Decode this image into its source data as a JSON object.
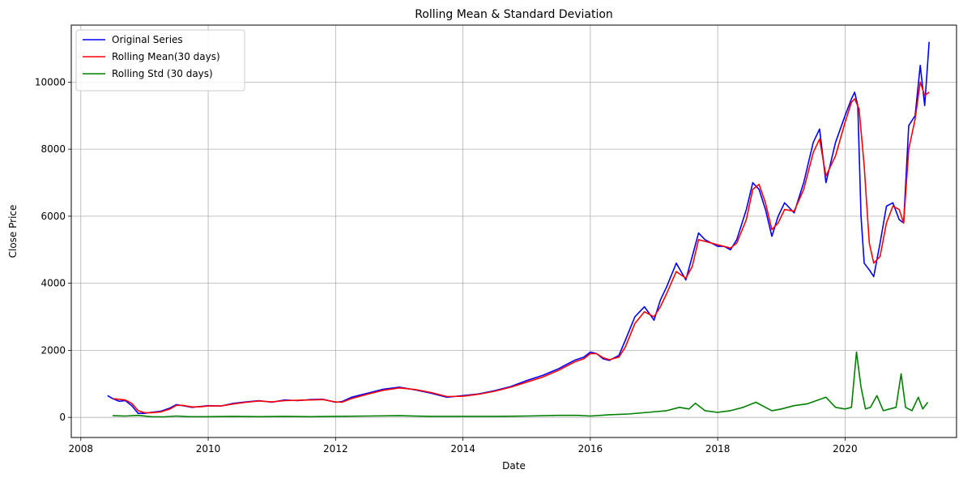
{
  "chart_data": {
    "type": "line",
    "title": "Rolling Mean & Standard Deviation",
    "xlabel": "Date",
    "ylabel": "Close Price",
    "xlim": [
      2007.85,
      2021.75
    ],
    "ylim": [
      -600,
      11700
    ],
    "x_ticks": [
      2008,
      2010,
      2012,
      2014,
      2016,
      2018,
      2020
    ],
    "x_tick_labels": [
      "2008",
      "2010",
      "2012",
      "2014",
      "2016",
      "2018",
      "2020"
    ],
    "y_ticks": [
      0,
      2000,
      4000,
      6000,
      8000,
      10000
    ],
    "y_tick_labels": [
      "0",
      "2000",
      "4000",
      "6000",
      "8000",
      "10000"
    ],
    "grid": true,
    "legend_position": "top-left",
    "colors": {
      "original": "#0000ff",
      "mean": "#ff0000",
      "std": "#008000",
      "grid": "#b0b0b0"
    },
    "series": [
      {
        "name": "Original Series",
        "color": "#0000ff",
        "x": [
          2008.42,
          2008.5,
          2008.6,
          2008.7,
          2008.8,
          2008.9,
          2009.0,
          2009.1,
          2009.25,
          2009.4,
          2009.5,
          2009.6,
          2009.75,
          2009.9,
          2010.0,
          2010.2,
          2010.4,
          2010.6,
          2010.8,
          2011.0,
          2011.2,
          2011.4,
          2011.6,
          2011.8,
          2012.0,
          2012.1,
          2012.25,
          2012.5,
          2012.75,
          2013.0,
          2013.25,
          2013.5,
          2013.75,
          2014.0,
          2014.25,
          2014.5,
          2014.75,
          2015.0,
          2015.25,
          2015.5,
          2015.6,
          2015.75,
          2015.9,
          2016.0,
          2016.1,
          2016.2,
          2016.3,
          2016.45,
          2016.55,
          2016.7,
          2016.85,
          2017.0,
          2017.1,
          2017.2,
          2017.35,
          2017.5,
          2017.6,
          2017.7,
          2017.8,
          2018.0,
          2018.1,
          2018.2,
          2018.3,
          2018.45,
          2018.55,
          2018.65,
          2018.75,
          2018.85,
          2018.95,
          2019.05,
          2019.2,
          2019.35,
          2019.5,
          2019.6,
          2019.7,
          2019.85,
          2020.0,
          2020.1,
          2020.15,
          2020.2,
          2020.25,
          2020.3,
          2020.38,
          2020.45,
          2020.55,
          2020.65,
          2020.75,
          2020.85,
          2020.92,
          2021.0,
          2021.1,
          2021.18,
          2021.25,
          2021.32
        ],
        "values": [
          650,
          560,
          480,
          500,
          350,
          120,
          120,
          150,
          180,
          280,
          380,
          350,
          300,
          330,
          350,
          340,
          420,
          460,
          500,
          450,
          520,
          500,
          530,
          540,
          450,
          470,
          600,
          720,
          840,
          900,
          820,
          720,
          600,
          650,
          700,
          800,
          920,
          1100,
          1250,
          1450,
          1550,
          1700,
          1800,
          1950,
          1900,
          1750,
          1700,
          1850,
          2300,
          3000,
          3300,
          2900,
          3500,
          3900,
          4600,
          4100,
          4800,
          5500,
          5300,
          5100,
          5100,
          5000,
          5300,
          6200,
          7000,
          6800,
          6200,
          5400,
          6000,
          6400,
          6100,
          7000,
          8200,
          8600,
          7000,
          8200,
          9000,
          9500,
          9700,
          9300,
          6000,
          4600,
          4400,
          4200,
          5200,
          6300,
          6400,
          5900,
          5800,
          8700,
          9000,
          10500,
          9300,
          11200
        ]
      },
      {
        "name": "Rolling Mean(30 days)",
        "color": "#ff0000",
        "x": [
          2008.5,
          2008.6,
          2008.7,
          2008.8,
          2008.9,
          2009.0,
          2009.1,
          2009.25,
          2009.4,
          2009.5,
          2009.6,
          2009.75,
          2009.9,
          2010.0,
          2010.2,
          2010.4,
          2010.6,
          2010.8,
          2011.0,
          2011.2,
          2011.4,
          2011.6,
          2011.8,
          2012.0,
          2012.1,
          2012.25,
          2012.5,
          2012.75,
          2013.0,
          2013.25,
          2013.5,
          2013.75,
          2014.0,
          2014.25,
          2014.5,
          2014.75,
          2015.0,
          2015.25,
          2015.5,
          2015.6,
          2015.75,
          2015.9,
          2016.0,
          2016.1,
          2016.2,
          2016.3,
          2016.45,
          2016.55,
          2016.7,
          2016.85,
          2017.0,
          2017.1,
          2017.2,
          2017.35,
          2017.5,
          2017.6,
          2017.7,
          2017.8,
          2018.0,
          2018.1,
          2018.2,
          2018.3,
          2018.45,
          2018.55,
          2018.65,
          2018.75,
          2018.85,
          2018.95,
          2019.05,
          2019.2,
          2019.35,
          2019.5,
          2019.6,
          2019.7,
          2019.85,
          2020.0,
          2020.1,
          2020.15,
          2020.22,
          2020.3,
          2020.38,
          2020.45,
          2020.55,
          2020.65,
          2020.75,
          2020.85,
          2020.92,
          2021.0,
          2021.1,
          2021.18,
          2021.25,
          2021.32
        ],
        "values": [
          560,
          540,
          520,
          420,
          200,
          140,
          140,
          160,
          250,
          360,
          360,
          310,
          320,
          340,
          340,
          400,
          450,
          490,
          460,
          500,
          510,
          520,
          530,
          460,
          450,
          560,
          690,
          810,
          880,
          830,
          740,
          620,
          630,
          690,
          780,
          900,
          1050,
          1200,
          1400,
          1500,
          1650,
          1750,
          1900,
          1900,
          1780,
          1720,
          1800,
          2100,
          2800,
          3150,
          3000,
          3300,
          3700,
          4350,
          4150,
          4500,
          5300,
          5250,
          5150,
          5100,
          5050,
          5200,
          5900,
          6800,
          6950,
          6400,
          5600,
          5800,
          6200,
          6150,
          6800,
          7900,
          8300,
          7200,
          7800,
          8800,
          9400,
          9500,
          9200,
          7500,
          5200,
          4600,
          4800,
          5800,
          6300,
          6200,
          5800,
          8000,
          8900,
          10000,
          9600,
          9700
        ]
      },
      {
        "name": "Rolling Std (30 days)",
        "color": "#008000",
        "x": [
          2008.5,
          2008.7,
          2008.9,
          2009.1,
          2009.3,
          2009.5,
          2009.7,
          2010.0,
          2010.4,
          2010.8,
          2011.2,
          2011.6,
          2012.0,
          2012.5,
          2013.0,
          2013.5,
          2014.0,
          2014.5,
          2015.0,
          2015.5,
          2015.8,
          2016.0,
          2016.3,
          2016.6,
          2016.9,
          2017.2,
          2017.4,
          2017.55,
          2017.65,
          2017.8,
          2018.0,
          2018.2,
          2018.4,
          2018.6,
          2018.75,
          2018.85,
          2019.0,
          2019.2,
          2019.4,
          2019.55,
          2019.7,
          2019.85,
          2020.0,
          2020.1,
          2020.18,
          2020.25,
          2020.32,
          2020.4,
          2020.5,
          2020.6,
          2020.7,
          2020.8,
          2020.88,
          2020.95,
          2021.05,
          2021.15,
          2021.22,
          2021.3
        ],
        "values": [
          50,
          40,
          60,
          20,
          15,
          40,
          20,
          20,
          30,
          20,
          30,
          20,
          30,
          40,
          50,
          30,
          30,
          30,
          40,
          60,
          60,
          40,
          80,
          100,
          150,
          200,
          300,
          250,
          420,
          200,
          150,
          200,
          300,
          450,
          300,
          200,
          250,
          350,
          400,
          500,
          600,
          300,
          250,
          300,
          1950,
          900,
          250,
          300,
          650,
          200,
          250,
          300,
          1300,
          300,
          200,
          600,
          250,
          450
        ]
      }
    ]
  }
}
